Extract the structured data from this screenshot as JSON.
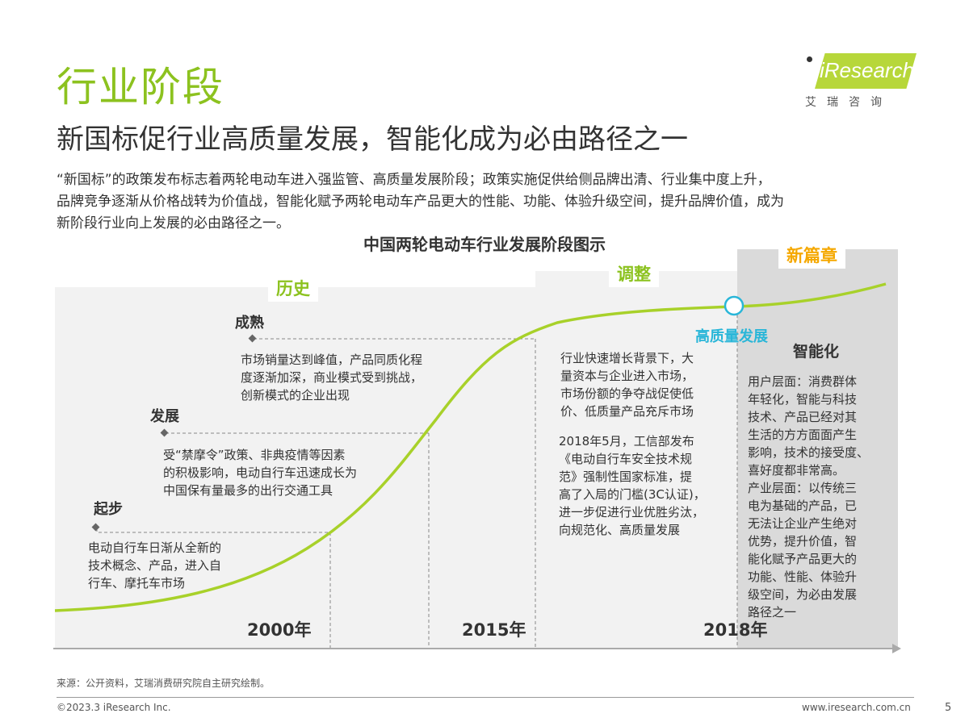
{
  "header": {
    "title": "行业阶段",
    "subtitle": "新国标促行业高质量发展，智能化成为必由路径之一",
    "intro_lines": [
      "“新国标”的政策发布标志着两轮电动车进入强监管、高质量发展阶段；政策实施促供给侧品牌出清、行业集中度上升，",
      "品牌竞争逐渐从价格战转为价值战，智能化赋予两轮电动车产品更大的性能、功能、体验升级空间，提升品牌价值，成为",
      "新阶段行业向上发展的必由路径之一。"
    ]
  },
  "logo": {
    "text": "iResearch",
    "cn": "艾瑞咨询"
  },
  "diagram": {
    "title": "中国两轮电动车行业发展阶段图示",
    "stages": {
      "history": "历史",
      "adjust": "调整",
      "new": "新篇章"
    },
    "milestones": {
      "start": "起步",
      "develop": "发展",
      "mature": "成熟",
      "quality": "高质量发展",
      "smart": "智能化"
    },
    "descriptions": {
      "start": [
        "电动自行车日渐从全新的",
        "技术概念、产品，进入自",
        "行车、摩托车市场"
      ],
      "develop": [
        "受“禁摩令”政策、非典疫情等因素",
        "的积极影响，电动自行车迅速成长为",
        "中国保有量最多的出行交通工具"
      ],
      "mature": [
        "市场销量达到峰值，产品同质化程",
        "度逐渐加深，商业模式受到挑战，",
        "创新模式的企业出现"
      ],
      "adjust_a": [
        "行业快速增长背景下，大",
        "量资本与企业进入市场，",
        "市场份额的争夺战促使低",
        "价、低质量产品充斥市场"
      ],
      "adjust_b": [
        "2018年5月，工信部发布",
        "《电动自行车安全技术规",
        "范》强制性国家标准，提",
        "高了入局的门槛(3C认证)，",
        "进一步促进行业优胜劣汰，",
        "向规范化、高质量发展"
      ],
      "smart": [
        "用户层面：消费群体",
        "年轻化，智能与科技",
        "技术、产品已经对其",
        "生活的方方面面产生",
        "影响，技术的接受度、",
        "喜好度都非常高。",
        "产业层面：以传统三",
        "电为基础的产品，已",
        "无法让企业产生绝对",
        "优势，提升价值，智",
        "能化赋予产品更大的",
        "功能、性能、体验升",
        "级空间，为必由发展",
        "路径之一"
      ]
    },
    "years": [
      "2000年",
      "2015年",
      "2018年"
    ],
    "colors": {
      "curve": "#a8d12a",
      "accent_green": "#8cc21f",
      "new_chapter": "#f5a800",
      "quality": "#29b6d8",
      "panel": "#f2f2f2",
      "panel_dark": "#dadada"
    }
  },
  "footer": {
    "source": "来源：公开资料，艾瑞消费研究院自主研究绘制。",
    "copyright": "©2023.3 iResearch Inc.",
    "website": "www.iresearch.com.cn",
    "page": "5"
  }
}
